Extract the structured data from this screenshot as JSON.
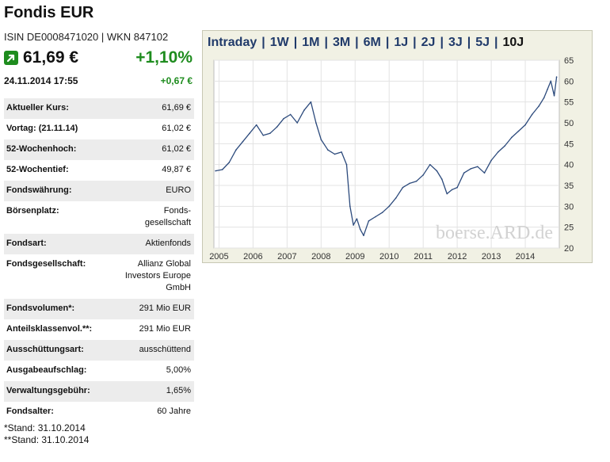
{
  "header": {
    "title": "Fondis EUR",
    "ids": "ISIN DE0008471020 | WKN 847102",
    "price": "61,69 €",
    "change_pct": "+1,10%",
    "datetime": "24.11.2014  17:55",
    "change_abs": "+0,67 €",
    "trend_icon": "arrow-up-icon",
    "positive_color": "#1e8c1e"
  },
  "details": [
    {
      "label": "Aktueller Kurs:",
      "value": "61,69 €"
    },
    {
      "label": "Vortag: (21.11.14)",
      "value": "61,02 €"
    },
    {
      "label": "52-Wochenhoch:",
      "value": "61,02 €"
    },
    {
      "label": "52-Wochentief:",
      "value": "49,87 €"
    },
    {
      "label": "Fondswährung:",
      "value": "EURO"
    },
    {
      "label": "Börsenplatz:",
      "value": "Fonds-gesellschaft"
    },
    {
      "label": "Fondsart:",
      "value": "Aktienfonds"
    },
    {
      "label": "Fondsgesellschaft:",
      "value": "Allianz Global Investors Europe GmbH"
    },
    {
      "label": "Fondsvolumen*:",
      "value": "291 Mio EUR"
    },
    {
      "label": "Anteilsklassenvol.**:",
      "value": "291 Mio EUR"
    },
    {
      "label": "Ausschüttungsart:",
      "value": "ausschüttend"
    },
    {
      "label": "Ausgabeaufschlag:",
      "value": "5,00%"
    },
    {
      "label": "Verwaltungsgebühr:",
      "value": "1,65%"
    },
    {
      "label": "Fondsalter:",
      "value": "60 Jahre"
    }
  ],
  "footnotes": [
    "*Stand: 31.10.2014",
    "**Stand: 31.10.2014"
  ],
  "chart_tabs": [
    "Intraday",
    "1W",
    "1M",
    "3M",
    "6M",
    "1J",
    "2J",
    "3J",
    "5J",
    "10J"
  ],
  "chart_active_tab": "10J",
  "chart_data": {
    "type": "line",
    "title": "",
    "xlabel": "",
    "ylabel": "",
    "x_ticks": [
      "2005",
      "2006",
      "2007",
      "2008",
      "2009",
      "2010",
      "2011",
      "2012",
      "2013",
      "2014"
    ],
    "y_ticks": [
      20,
      25,
      30,
      35,
      40,
      45,
      50,
      55,
      60,
      65
    ],
    "ylim": [
      20,
      65
    ],
    "xlim": [
      2004.85,
      2015.0
    ],
    "grid": true,
    "watermark": "boerse.ARD.de",
    "line_color": "#2c4a7c",
    "series": [
      {
        "x": [
          2004.9,
          2005.1,
          2005.3,
          2005.5,
          2005.7,
          2005.9,
          2006.1,
          2006.3,
          2006.5,
          2006.7,
          2006.9,
          2007.1,
          2007.3,
          2007.5,
          2007.7,
          2007.85,
          2008.0,
          2008.2,
          2008.4,
          2008.6,
          2008.75,
          2008.85,
          2008.95,
          2009.05,
          2009.15,
          2009.25,
          2009.4,
          2009.6,
          2009.8,
          2010.0,
          2010.2,
          2010.4,
          2010.6,
          2010.8,
          2011.0,
          2011.2,
          2011.4,
          2011.55,
          2011.7,
          2011.85,
          2012.0,
          2012.2,
          2012.4,
          2012.6,
          2012.8,
          2013.0,
          2013.2,
          2013.4,
          2013.6,
          2013.8,
          2014.0,
          2014.2,
          2014.4,
          2014.55,
          2014.65,
          2014.75,
          2014.85,
          2014.92
        ],
        "y": [
          38.5,
          38.8,
          40.5,
          43.5,
          45.5,
          47.5,
          49.5,
          47.0,
          47.5,
          49.0,
          51.0,
          52.0,
          50.0,
          53.0,
          55.0,
          50.0,
          46.0,
          43.5,
          42.5,
          43.0,
          40.0,
          30.0,
          25.5,
          27.0,
          24.5,
          23.0,
          26.5,
          27.5,
          28.5,
          30.0,
          32.0,
          34.5,
          35.5,
          36.0,
          37.5,
          40.0,
          38.5,
          36.5,
          33.0,
          34.0,
          34.5,
          38.0,
          39.0,
          39.5,
          38.0,
          41.0,
          43.0,
          44.5,
          46.5,
          48.0,
          49.5,
          52.0,
          54.0,
          56.0,
          58.0,
          60.0,
          56.5,
          61.0
        ]
      }
    ]
  }
}
